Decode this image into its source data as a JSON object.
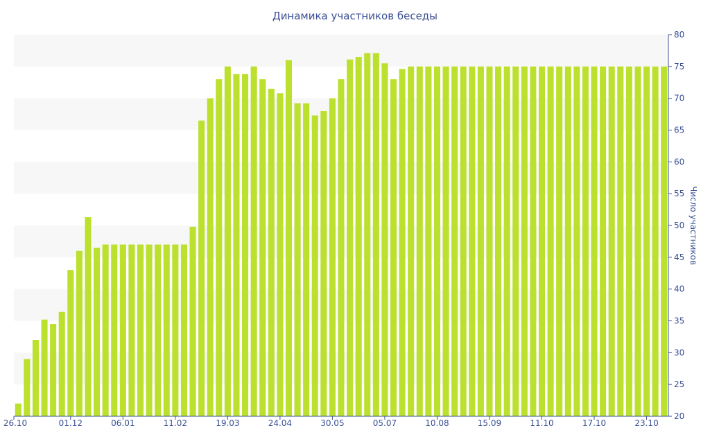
{
  "chart_data": {
    "type": "bar",
    "title": "Динамика участников беседы",
    "ylabel": "Число участников",
    "ylim": [
      20,
      80
    ],
    "y_ticks": [
      20,
      25,
      30,
      35,
      40,
      45,
      50,
      55,
      60,
      65,
      70,
      75,
      80
    ],
    "x_tick_labels": [
      "26.10",
      "01.12",
      "06.01",
      "11.02",
      "19.03",
      "24.04",
      "30.05",
      "05.07",
      "10.08",
      "15.09",
      "11.10",
      "17.10",
      "23.10"
    ],
    "x_tick_indices": [
      0,
      6,
      12,
      18,
      24,
      30,
      36,
      42,
      48,
      54,
      60,
      66,
      72
    ],
    "bar_color": "#bbe02e",
    "band_color": "#f7f7f7",
    "text_color": "#3a4f94",
    "values": [
      22,
      29,
      32,
      35.2,
      34.5,
      36.4,
      43,
      46,
      51.3,
      46.5,
      47,
      47,
      47,
      47,
      47,
      47,
      47,
      47,
      47,
      47,
      49.8,
      66.5,
      70,
      73,
      75,
      73.8,
      73.8,
      75,
      73,
      71.5,
      70.8,
      76,
      69.2,
      69.2,
      67.3,
      68,
      70,
      73,
      76.1,
      76.5,
      77.1,
      77.1,
      75.5,
      73,
      74.6,
      75,
      75,
      75,
      75,
      75,
      75,
      75,
      75,
      75,
      75,
      75,
      75,
      75,
      75,
      75,
      75,
      75,
      75,
      75,
      75,
      75,
      75,
      75,
      75,
      75,
      75,
      75,
      75,
      75,
      75
    ]
  }
}
